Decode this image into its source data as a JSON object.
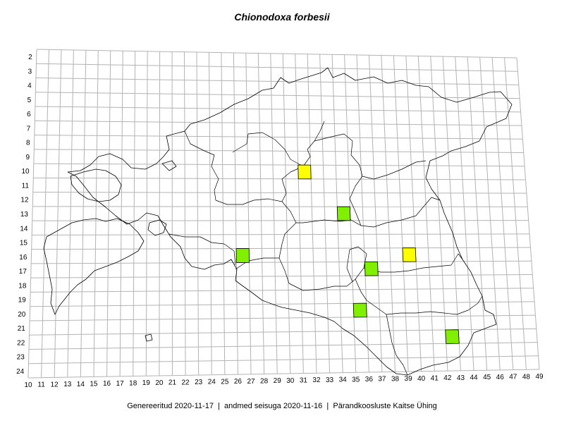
{
  "title": "Chionodoxa forbesii",
  "footer": {
    "generated": "Genereeritud 2020-11-17",
    "data_state": "andmed seisuga 2020-11-16",
    "organization": "Pärandkoosluste Kaitse Ühing",
    "separator": "|"
  },
  "grid": {
    "columns": [
      10,
      11,
      12,
      13,
      14,
      15,
      16,
      17,
      18,
      19,
      20,
      21,
      22,
      23,
      24,
      25,
      26,
      27,
      28,
      29,
      30,
      31,
      32,
      33,
      34,
      35,
      36,
      37,
      38,
      39,
      40,
      41,
      42,
      43,
      44,
      45,
      46,
      47,
      48,
      49
    ],
    "rows": [
      2,
      3,
      4,
      5,
      6,
      7,
      8,
      9,
      10,
      11,
      12,
      13,
      14,
      15,
      16,
      17,
      18,
      19,
      20,
      21,
      22,
      23,
      24
    ]
  },
  "legend_colors": {
    "green": "#80f000",
    "yellow": "#ffff00"
  },
  "occurrences": [
    {
      "col": 31,
      "row": 10,
      "color": "yellow"
    },
    {
      "col": 34,
      "row": 13,
      "color": "green"
    },
    {
      "col": 26,
      "row": 16,
      "color": "green"
    },
    {
      "col": 39,
      "row": 16,
      "color": "yellow"
    },
    {
      "col": 36,
      "row": 17,
      "color": "green"
    },
    {
      "col": 35,
      "row": 20,
      "color": "green"
    },
    {
      "col": 42,
      "row": 22,
      "color": "green"
    }
  ]
}
